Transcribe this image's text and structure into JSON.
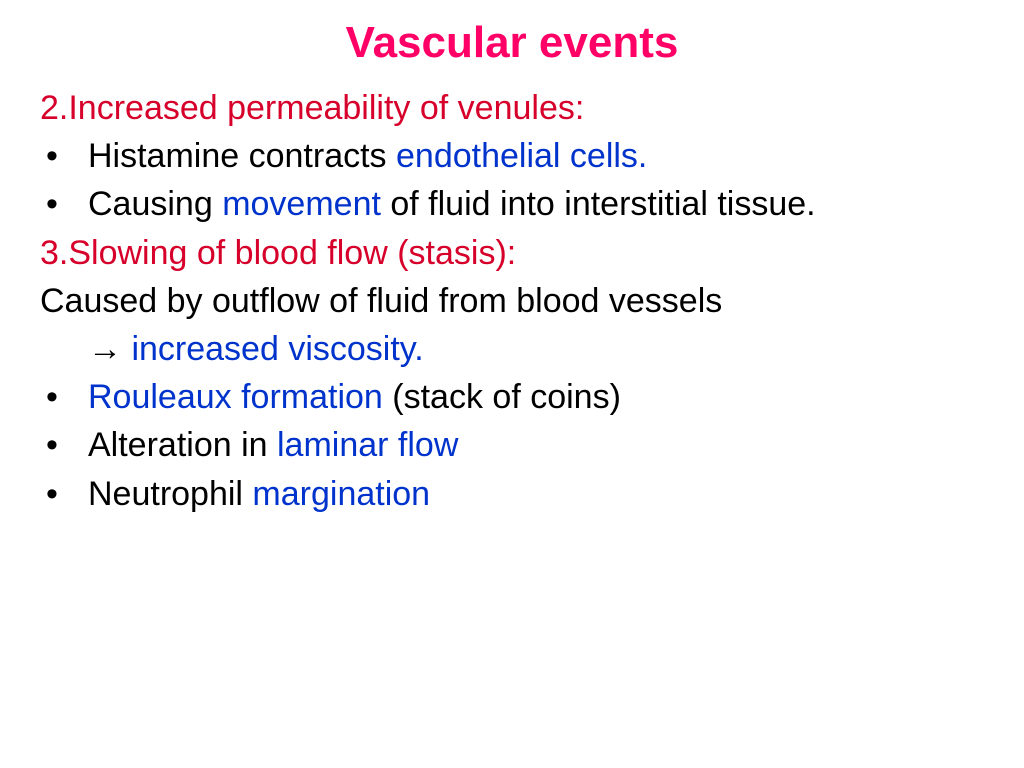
{
  "colors": {
    "title": "#ff0066",
    "heading_red": "#d6002a",
    "blue": "#0033cc",
    "black": "#000000",
    "background": "#ffffff"
  },
  "typography": {
    "title_fontsize": 44,
    "body_fontsize": 34,
    "font_family": "Comic Sans MS"
  },
  "title": "Vascular events",
  "section2": {
    "heading": "2.Increased permeability of venules:",
    "bullets": [
      {
        "pre": "Histamine contracts ",
        "hl": "endothelial cells."
      },
      {
        "pre": "Causing ",
        "hl": "movement",
        "post": " of fluid into interstitial tissue."
      }
    ]
  },
  "section3": {
    "heading": "3.Slowing of blood flow (stasis):",
    "lead_line": "Caused by outflow of fluid from blood vessels",
    "arrow_line_arrow": "→ ",
    "arrow_line_text": "increased viscosity.",
    "bullets": [
      {
        "hl": "Rouleaux formation ",
        "post": "(stack of coins)"
      },
      {
        "pre": "Alteration in ",
        "hl": "laminar flow"
      },
      {
        "pre": "Neutrophil ",
        "hl": "margination"
      }
    ]
  }
}
